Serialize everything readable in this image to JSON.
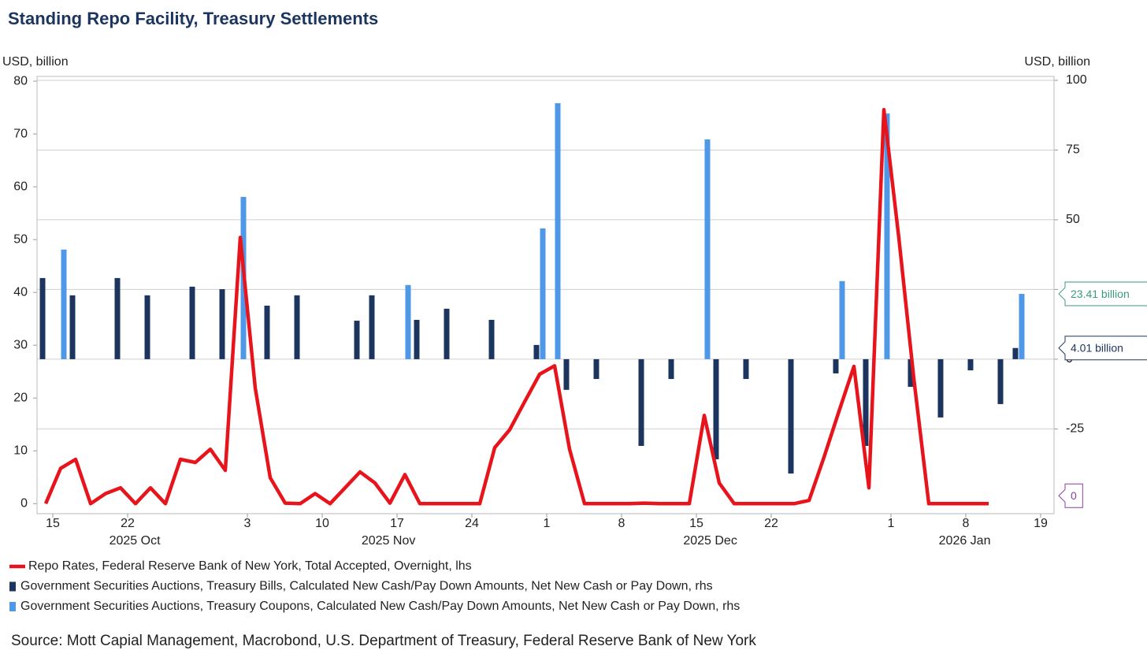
{
  "chart_data": {
    "type": "combo",
    "title": "Standing Repo Facility, Treasury Settlements",
    "y_label": "USD, billion",
    "y2_label": "USD, billion",
    "source": "Source: Mott Capial Management, Macrobond, U.S. Department of Treasury, Federal Reserve Bank of New York",
    "xlim": [
      -0.58,
      67.37
    ],
    "xticks": [
      {
        "value": 0,
        "label": "15"
      },
      {
        "value": 5,
        "label": "22"
      },
      {
        "value": 13,
        "label": "3"
      },
      {
        "value": 18,
        "label": "10"
      },
      {
        "value": 23,
        "label": "17"
      },
      {
        "value": 28,
        "label": "24"
      },
      {
        "value": 33,
        "label": "1"
      },
      {
        "value": 38,
        "label": "8"
      },
      {
        "value": 43,
        "label": "15"
      },
      {
        "value": 48,
        "label": "22"
      },
      {
        "value": 56,
        "label": "1"
      },
      {
        "value": 61,
        "label": "8"
      },
      {
        "value": 66,
        "label": "19"
      }
    ],
    "x_groups": [
      {
        "label": "2025 Oct",
        "x": 5.95
      },
      {
        "label": "2025 Nov",
        "x": 22.9
      },
      {
        "label": "2025 Dec",
        "x": 44.4
      },
      {
        "label": "2026 Jan",
        "x": 61.4
      }
    ],
    "ylim": [
      -1.9,
      80.9
    ],
    "yticks": [
      0,
      10,
      20,
      30,
      40,
      50,
      60,
      70,
      80
    ],
    "y2lim": [
      -55.4,
      101.4
    ],
    "y2ticks": [
      -25,
      0,
      25,
      50,
      75,
      100
    ],
    "grid": true,
    "series": [
      {
        "name": "Repo Rates, Federal Reserve Bank of New York, Total Accepted, Overnight, lhs",
        "type": "line",
        "axis": "y",
        "color": "#e8141c",
        "label_color": "#8a3fa0",
        "end_label": "0",
        "x": [
          0,
          1,
          2,
          3,
          4,
          5,
          6,
          7,
          8,
          9,
          10,
          11,
          12,
          13,
          14,
          15,
          16,
          17,
          18,
          19,
          20,
          21,
          22,
          23,
          24,
          25,
          26,
          27,
          28,
          29,
          30,
          31,
          32,
          33,
          34,
          35,
          36,
          37,
          38,
          39,
          40,
          41,
          42,
          43,
          44,
          45,
          46,
          47,
          48,
          49,
          50,
          51,
          52,
          53,
          54,
          55,
          56,
          57,
          58,
          59,
          60,
          61,
          62,
          63
        ],
        "values": [
          0,
          6.7,
          8.4,
          0,
          1.9,
          3.0,
          0,
          3.0,
          0,
          8.4,
          7.8,
          10.3,
          6.3,
          50.4,
          21.9,
          4.9,
          0.1,
          0,
          1.9,
          0,
          3.0,
          6.0,
          3.9,
          0.1,
          5.5,
          0,
          0,
          0,
          0,
          0,
          10.6,
          14.0,
          19.3,
          24.5,
          26.1,
          10.3,
          0,
          0,
          0,
          0,
          0.1,
          0,
          0,
          0,
          16.7,
          3.9,
          0,
          0,
          0,
          0,
          0,
          0.6,
          8.8,
          17.5,
          26.0,
          3.0,
          74.6,
          50.3,
          23.7,
          0,
          0,
          0,
          0,
          0
        ]
      },
      {
        "name": "Government Securities Auctions, Treasury Bills, Calculated New Cash/Pay Down Amounts, Net New Cash or Pay Down, rhs",
        "type": "bar",
        "axis": "y2",
        "color": "#1c355e",
        "label_color": "#1c355e",
        "end_label": "4.01 billion",
        "offset": -4,
        "x": [
          0,
          2,
          5,
          7,
          10,
          12,
          15,
          17,
          21,
          22,
          25,
          27,
          30,
          33,
          35,
          37,
          40,
          42,
          45,
          47,
          50,
          53,
          55,
          58,
          60,
          62,
          64,
          65
        ],
        "values": [
          29.1,
          22.9,
          29.1,
          22.9,
          26.0,
          25.1,
          19.2,
          22.9,
          13.8,
          22.9,
          14.1,
          18.1,
          14.1,
          5.1,
          -11.0,
          -7.1,
          -31.1,
          -7.1,
          -35.9,
          -7.1,
          -41.0,
          -5.1,
          -31.1,
          -9.9,
          -20.9,
          -4.0,
          -16.1,
          4.01
        ]
      },
      {
        "name": "Government Securities Auctions, Treasury Coupons, Calculated New Cash/Pay Down Amounts, Net New Cash or Pay Down, rhs",
        "type": "bar",
        "axis": "y2",
        "color": "#4f98e8",
        "label_color": "#3a9a7a",
        "end_label": "23.41 billion",
        "offset": 4,
        "x": [
          1,
          13,
          24,
          33,
          34,
          44,
          53,
          56,
          65
        ],
        "values": [
          39.3,
          58.2,
          26.6,
          46.9,
          91.8,
          78.8,
          28.0,
          88.1,
          23.41
        ]
      }
    ]
  }
}
